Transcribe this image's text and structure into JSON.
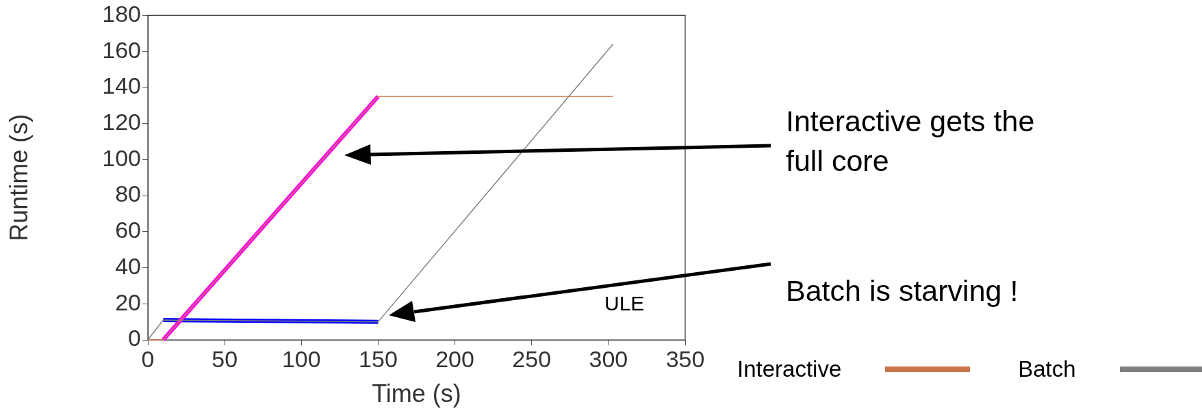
{
  "chart_data": {
    "type": "line",
    "xlabel": "Time (s)",
    "ylabel": "Runtime (s)",
    "xlim": [
      0,
      350
    ],
    "xticks": [
      0,
      50,
      100,
      150,
      200,
      250,
      300,
      350
    ],
    "ylim": [
      0,
      180
    ],
    "yticks": [
      0,
      20,
      40,
      60,
      80,
      100,
      120,
      140,
      160,
      180
    ],
    "grid": false,
    "legend": "bottom right",
    "marker": "none",
    "line_style": "solid",
    "series": [
      {
        "name": "Interactive",
        "color": "#c8754c",
        "x": [
          0,
          10,
          150,
          303
        ],
        "values": [
          0,
          0,
          135,
          135
        ]
      },
      {
        "name": "Batch",
        "color": "#808080",
        "x": [
          0,
          10,
          150,
          303
        ],
        "values": [
          0,
          11,
          10,
          164
        ]
      },
      {
        "color": "#ff00ff",
        "x": [
          10,
          150
        ],
        "values": [
          0,
          135
        ]
      },
      {
        "color": "#0000ff",
        "x": [
          10,
          150
        ],
        "values": [
          11,
          10
        ]
      }
    ],
    "annotations": [
      "Interactive gets the full core",
      "Batch is starving !",
      "ULE"
    ]
  }
}
